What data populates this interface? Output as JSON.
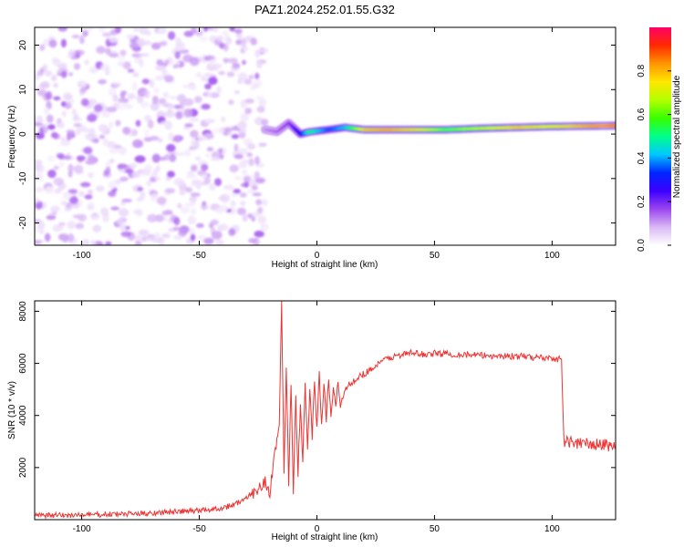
{
  "title": "PAZ1.2024.252.01.55.G32",
  "chart_data": [
    {
      "type": "heatmap",
      "xlabel": "Height of straight line (km)",
      "ylabel": "Frequency (Hz)",
      "xlim": [
        -120,
        127
      ],
      "ylim": [
        -25,
        24
      ],
      "xticks": [
        -100,
        -50,
        0,
        50,
        100
      ],
      "yticks": [
        -20,
        -10,
        0,
        10,
        20
      ],
      "colorbar": {
        "label": "Normalized spectral amplitude",
        "range": [
          0,
          1
        ],
        "ticks": [
          0.0,
          0.2,
          0.4,
          0.6,
          0.8
        ],
        "tick_labels": [
          "0.0",
          "0.2",
          "0.4",
          "0.6",
          "0.8"
        ],
        "colormap": [
          "#ffffff",
          "#d9b8f5",
          "#9a44ee",
          "#3b00ff",
          "#0026ff",
          "#00c8ff",
          "#00ff8a",
          "#38ff00",
          "#b4ff00",
          "#ffe600",
          "#ff9500",
          "#ff2a00",
          "#ff0066"
        ]
      },
      "noise_region": {
        "x_range": [
          -120,
          -22
        ],
        "f_range": [
          -25,
          24
        ],
        "amplitude_range": [
          0.02,
          0.15
        ]
      },
      "signal_ridge": [
        {
          "x": -22,
          "f": 1.0,
          "a": 0.12
        },
        {
          "x": -17,
          "f": 0.5,
          "a": 0.15
        },
        {
          "x": -12,
          "f": 2.5,
          "a": 0.18
        },
        {
          "x": -7,
          "f": 0.0,
          "a": 0.3
        },
        {
          "x": -3,
          "f": 0.5,
          "a": 0.55
        },
        {
          "x": 5,
          "f": 1.0,
          "a": 0.35
        },
        {
          "x": 12,
          "f": 1.5,
          "a": 0.45
        },
        {
          "x": 20,
          "f": 1.0,
          "a": 0.8
        },
        {
          "x": 30,
          "f": 1.0,
          "a": 0.85
        },
        {
          "x": 45,
          "f": 1.0,
          "a": 0.75
        },
        {
          "x": 55,
          "f": 1.0,
          "a": 0.6
        },
        {
          "x": 70,
          "f": 1.3,
          "a": 0.7
        },
        {
          "x": 85,
          "f": 1.5,
          "a": 0.8
        },
        {
          "x": 100,
          "f": 1.7,
          "a": 0.75
        },
        {
          "x": 115,
          "f": 1.8,
          "a": 0.85
        },
        {
          "x": 127,
          "f": 1.9,
          "a": 0.9
        }
      ]
    },
    {
      "type": "line",
      "xlabel": "Height of straight line (km)",
      "ylabel": "SNR (10 * v/v)",
      "xlim": [
        -120,
        127
      ],
      "ylim": [
        0,
        8400
      ],
      "xticks": [
        -100,
        -50,
        0,
        50,
        100
      ],
      "yticks": [
        2000,
        4000,
        6000,
        8000
      ],
      "line_color": "#ee3333",
      "series": [
        {
          "x": [
            -120,
            -100,
            -80,
            -60,
            -50,
            -40,
            -35,
            -30,
            -25,
            -22,
            -20,
            -18,
            -16,
            -15,
            -14,
            -13,
            -12,
            -11,
            -10,
            -9,
            -8,
            -7,
            -6,
            -5,
            -4,
            -3,
            -2,
            -1,
            0,
            1,
            2,
            3,
            4,
            5,
            6,
            7,
            8,
            9,
            10,
            12,
            15,
            18,
            20,
            25,
            30,
            35,
            40,
            45,
            50,
            60,
            70,
            80,
            90,
            100,
            104,
            105,
            106,
            110,
            115,
            120,
            127
          ],
          "y": [
            150,
            180,
            220,
            300,
            350,
            450,
            600,
            800,
            1200,
            1500,
            1000,
            2500,
            3500,
            8300,
            2000,
            5800,
            1500,
            5200,
            1200,
            4800,
            1800,
            4500,
            2300,
            5200,
            2600,
            5000,
            3200,
            5400,
            3400,
            5600,
            3600,
            5200,
            3800,
            5400,
            4000,
            5100,
            4300,
            5300,
            4400,
            5000,
            5300,
            5500,
            5600,
            5900,
            6200,
            6300,
            6400,
            6350,
            6380,
            6350,
            6300,
            6280,
            6250,
            6200,
            6150,
            3000,
            3000,
            2950,
            2900,
            2870,
            2850
          ]
        }
      ]
    }
  ]
}
